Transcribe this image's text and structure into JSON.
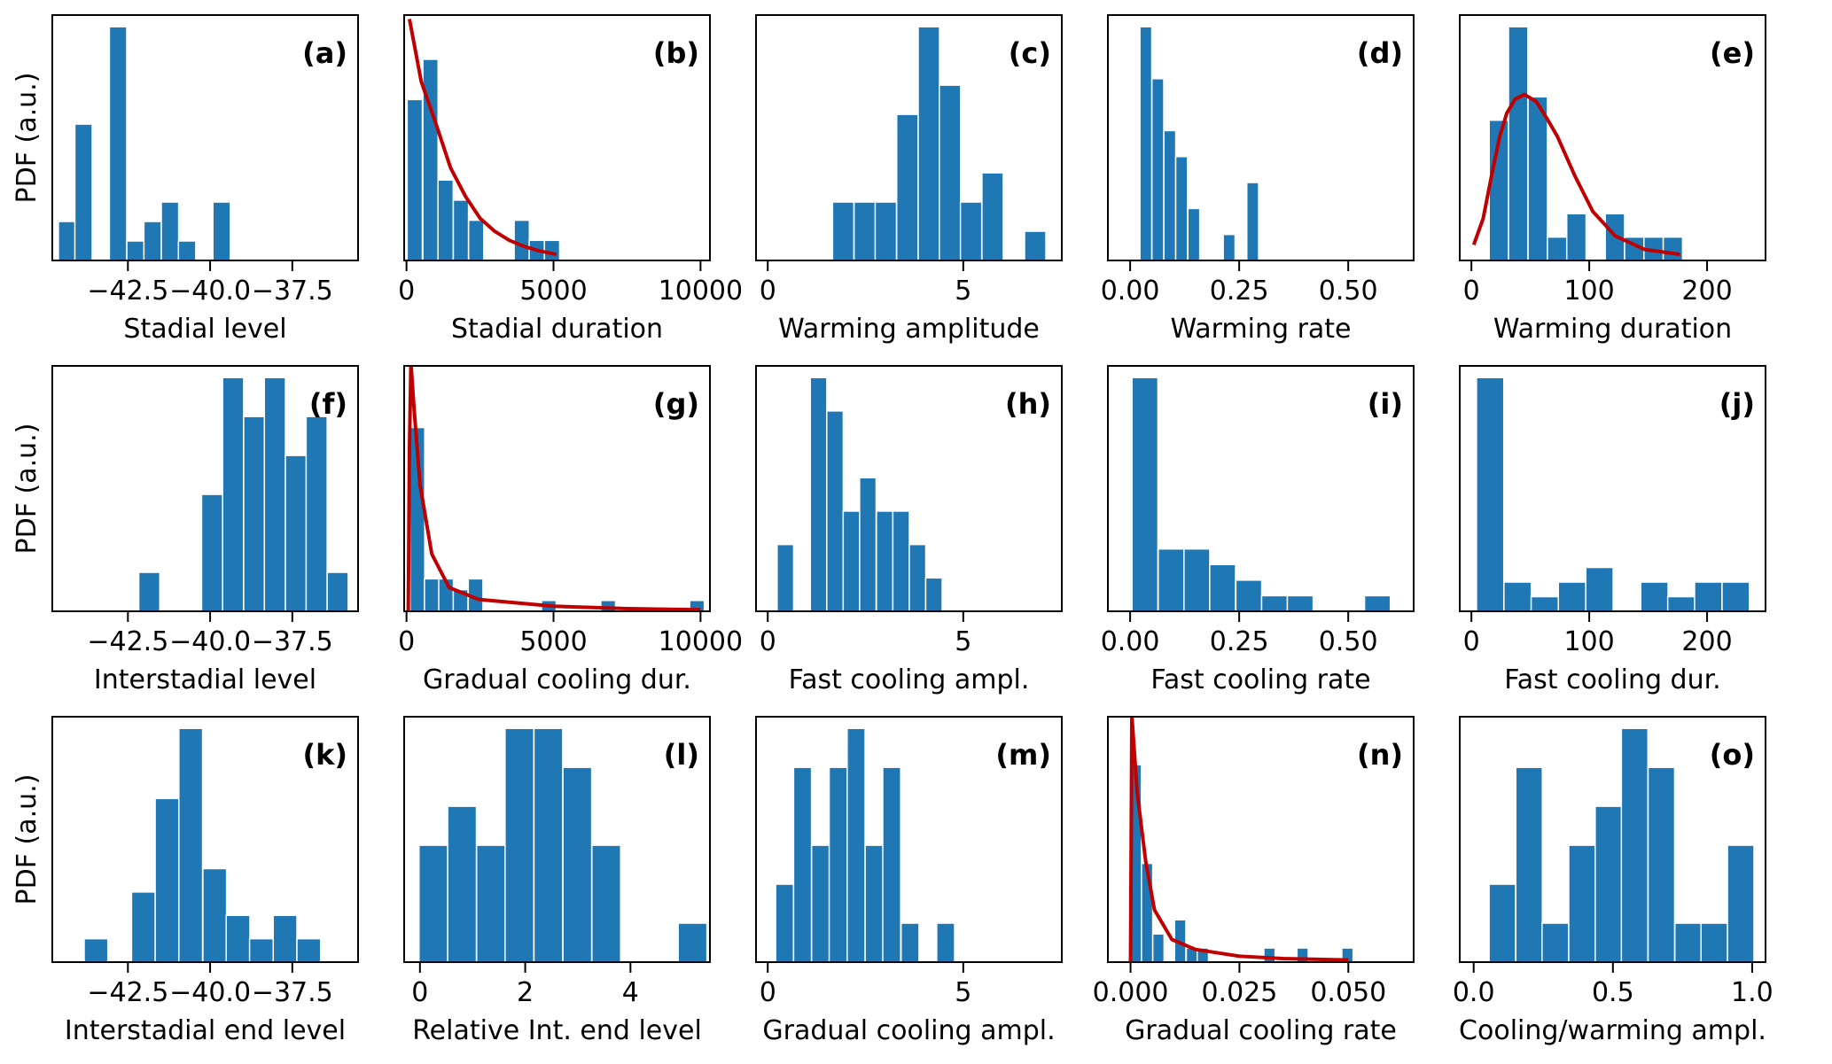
{
  "colors": {
    "bar": "#1f77b4",
    "fit_curve": "#c00000",
    "axes": "#000000"
  },
  "chart_data": [
    {
      "type": "bar",
      "panel_label": "(a)",
      "ylabel": "PDF (a.u.)",
      "xlabel": "Stadial level",
      "xlim": [
        -44.8,
        -35.5
      ],
      "ylim": [
        0,
        12.6
      ],
      "xticks": [
        -42.5,
        -40.0,
        -37.5
      ],
      "xtick_labels": [
        "−42.5",
        "−40.0",
        "−37.5"
      ],
      "bin_width": 0.527,
      "bins": [
        -44.35,
        -43.85,
        -42.8,
        -42.27,
        -41.75,
        -41.22,
        -40.7,
        -39.65
      ],
      "heights": [
        2,
        7,
        12,
        1,
        2,
        3,
        1,
        3
      ]
    },
    {
      "type": "bar",
      "panel_label": "(b)",
      "xlabel": "Stadial duration",
      "xlim": [
        -80,
        10320
      ],
      "ylim": [
        0,
        12.2
      ],
      "xticks": [
        0,
        5000,
        10000
      ],
      "xtick_labels": [
        "0",
        "5000",
        "10000"
      ],
      "bin_width": 517,
      "bins": [
        280,
        815,
        1330,
        1850,
        2370,
        3920,
        4430,
        4950
      ],
      "heights": [
        8,
        10,
        4,
        3,
        2,
        2,
        1,
        1
      ],
      "fit": {
        "x": [
          100,
          500,
          1000,
          1500,
          2000,
          2500,
          3000,
          3500,
          4000,
          4500,
          5100
        ],
        "y": [
          12,
          8.9,
          6.8,
          4.6,
          3.2,
          2.1,
          1.45,
          1.0,
          0.7,
          0.48,
          0.3
        ]
      }
    },
    {
      "type": "bar",
      "panel_label": "(c)",
      "xlabel": "Warming amplitude",
      "xlim": [
        -0.3,
        7.52
      ],
      "ylim": [
        0,
        8.4
      ],
      "xticks": [
        0,
        5
      ],
      "xtick_labels": [
        "0",
        "5"
      ],
      "bin_width": 0.545,
      "bins": [
        1.93,
        2.48,
        3.02,
        3.57,
        4.12,
        4.66,
        5.2,
        5.75,
        6.84
      ],
      "heights": [
        2,
        2,
        2,
        5,
        8,
        6,
        2,
        3,
        1
      ]
    },
    {
      "type": "bar",
      "panel_label": "(d)",
      "xlabel": "Warming rate",
      "xlim": [
        -0.051,
        0.65
      ],
      "ylim": [
        0,
        9.45
      ],
      "xticks": [
        0,
        0.25,
        0.5
      ],
      "xtick_labels": [
        "0.00",
        "0.25",
        "0.50"
      ],
      "bin_width": 0.0271,
      "bins": [
        0.036,
        0.0635,
        0.091,
        0.118,
        0.146,
        0.227,
        0.281
      ],
      "heights": [
        9,
        7,
        5,
        4,
        2,
        1,
        3
      ]
    },
    {
      "type": "bar",
      "panel_label": "(e)",
      "xlabel": "Warming duration",
      "xlim": [
        -9.9,
        249.6
      ],
      "ylim": [
        0,
        10.5
      ],
      "xticks": [
        0,
        100,
        200
      ],
      "xtick_labels": [
        "0",
        "100",
        "200"
      ],
      "bin_width": 16.4,
      "bins": [
        23.3,
        39.7,
        56.3,
        72.7,
        89.1,
        121.8,
        138.2,
        154.6,
        171
      ],
      "heights": [
        6,
        10,
        7,
        1,
        2,
        2,
        1,
        1,
        1
      ],
      "fit": {
        "x": [
          2,
          10,
          17,
          24,
          30,
          37,
          45,
          55,
          65,
          73,
          88,
          103,
          122,
          147,
          177
        ],
        "y": [
          0.67,
          1.8,
          3.6,
          5.3,
          6.3,
          6.9,
          7.1,
          6.8,
          6.0,
          5.3,
          3.6,
          2.1,
          1.05,
          0.47,
          0.26
        ]
      }
    },
    {
      "type": "bar",
      "panel_label": "(f)",
      "ylabel": "PDF (a.u.)",
      "xlabel": "Interstadial level",
      "xlim": [
        -44.8,
        -35.5
      ],
      "ylim": [
        0,
        12.6
      ],
      "xticks": [
        -42.5,
        -40.0,
        -37.5
      ],
      "xtick_labels": [
        "−42.5",
        "−40.0",
        "−37.5"
      ],
      "bin_width": 0.64,
      "bins": [
        -41.85,
        -39.94,
        -39.3,
        -38.66,
        -38.03,
        -37.39,
        -36.76,
        -36.12
      ],
      "heights": [
        2,
        6,
        12,
        10,
        12,
        8,
        10,
        2
      ]
    },
    {
      "type": "bar",
      "panel_label": "(g)",
      "xlabel": "Gradual cooling dur.",
      "xlim": [
        -80,
        10320
      ],
      "ylim": [
        0,
        22.7
      ],
      "xticks": [
        0,
        5000,
        10000
      ],
      "xtick_labels": [
        "0",
        "5000",
        "10000"
      ],
      "bin_width": 500,
      "bins": [
        370,
        860,
        1345,
        1840,
        2350,
        4840,
        6860,
        9880
      ],
      "heights": [
        17,
        3,
        3,
        2,
        3,
        1,
        1,
        1
      ],
      "fit": {
        "x": [
          60,
          100,
          150,
          250,
          460,
          860,
          1450,
          2450,
          5000,
          7500,
          10000
        ],
        "y": [
          0,
          15,
          23,
          19,
          11.7,
          5.3,
          2.2,
          1.1,
          0.47,
          0.25,
          0.14
        ]
      }
    },
    {
      "type": "bar",
      "panel_label": "(h)",
      "xlabel": "Fast cooling ampl.",
      "xlim": [
        -0.3,
        7.52
      ],
      "ylim": [
        0,
        7.35
      ],
      "xticks": [
        0,
        5
      ],
      "xtick_labels": [
        "0",
        "5"
      ],
      "bin_width": 0.422,
      "bins": [
        0.45,
        1.3,
        1.72,
        2.14,
        2.56,
        2.99,
        3.41,
        3.83,
        4.25
      ],
      "heights": [
        2,
        7,
        6,
        3,
        4,
        3,
        3,
        2,
        1
      ]
    },
    {
      "type": "bar",
      "panel_label": "(i)",
      "xlabel": "Fast cooling rate",
      "xlim": [
        -0.051,
        0.65
      ],
      "ylim": [
        0,
        15.75
      ],
      "xticks": [
        0,
        0.25,
        0.5
      ],
      "xtick_labels": [
        "0.00",
        "0.25",
        "0.50"
      ],
      "bin_width": 0.0592,
      "bins": [
        0.034,
        0.094,
        0.153,
        0.212,
        0.272,
        0.331,
        0.39,
        0.567
      ],
      "heights": [
        15,
        4,
        4,
        3,
        2,
        1,
        1,
        1
      ]
    },
    {
      "type": "bar",
      "panel_label": "(j)",
      "xlabel": "Fast cooling dur.",
      "xlim": [
        -9.9,
        249.6
      ],
      "ylim": [
        0,
        16.8
      ],
      "xticks": [
        0,
        100,
        200
      ],
      "xtick_labels": [
        "0",
        "100",
        "200"
      ],
      "bin_width": 23.2,
      "bins": [
        15.9,
        39.2,
        62.3,
        85.4,
        108.7,
        155.3,
        178.2,
        201,
        224.3
      ],
      "heights": [
        16,
        2,
        1,
        2,
        3,
        2,
        1,
        2,
        2
      ]
    },
    {
      "type": "bar",
      "panel_label": "(k)",
      "ylabel": "PDF (a.u.)",
      "xlabel": "Interstadial end level",
      "xlim": [
        -44.8,
        -35.5
      ],
      "ylim": [
        0,
        10.5
      ],
      "xticks": [
        -42.5,
        -40.0,
        -37.5
      ],
      "xtick_labels": [
        "−42.5",
        "−40.0",
        "−37.5"
      ],
      "bin_width": 0.72,
      "bins": [
        -43.47,
        -42.03,
        -41.31,
        -40.59,
        -39.86,
        -39.15,
        -38.44,
        -37.72,
        -37.0
      ],
      "heights": [
        1,
        3,
        7,
        10,
        4,
        2,
        1,
        2,
        1
      ]
    },
    {
      "type": "bar",
      "panel_label": "(l)",
      "xlabel": "Relative Int. end level",
      "xlim": [
        -0.3,
        5.51
      ],
      "ylim": [
        0,
        12.6
      ],
      "xticks": [
        0,
        2,
        4
      ],
      "xtick_labels": [
        "0",
        "2",
        "4"
      ],
      "bin_width": 0.546,
      "bins": [
        0.255,
        0.8,
        1.35,
        1.89,
        2.44,
        2.99,
        3.54,
        5.18
      ],
      "heights": [
        6,
        8,
        6,
        12,
        12,
        10,
        6,
        2
      ]
    },
    {
      "type": "bar",
      "panel_label": "(m)",
      "xlabel": "Gradual cooling ampl.",
      "xlim": [
        -0.3,
        7.52
      ],
      "ylim": [
        0,
        6.3
      ],
      "xticks": [
        0,
        5
      ],
      "xtick_labels": [
        "0",
        "5"
      ],
      "bin_width": 0.458,
      "bins": [
        0.43,
        0.89,
        1.35,
        1.8,
        2.26,
        2.72,
        3.17,
        3.64,
        4.55
      ],
      "heights": [
        2,
        5,
        3,
        5,
        6,
        3,
        5,
        1,
        1
      ]
    },
    {
      "type": "bar",
      "panel_label": "(n)",
      "xlabel": "Gradual cooling rate",
      "xlim": [
        -0.0052,
        0.065
      ],
      "ylim": [
        0,
        17.4
      ],
      "xticks": [
        0,
        0.025,
        0.05
      ],
      "xtick_labels": [
        "0.000",
        "0.025",
        "0.050"
      ],
      "bin_width": 0.00259,
      "bins": [
        0.0012,
        0.0038,
        0.0064,
        0.0114,
        0.0141,
        0.0166,
        0.0319,
        0.0395,
        0.0498
      ],
      "heights": [
        14,
        7,
        2,
        3,
        1,
        1,
        1,
        1,
        1
      ],
      "fit": {
        "x": [
          0,
          0.0003,
          0.0015,
          0.0035,
          0.0055,
          0.0095,
          0.0149,
          0.025,
          0.035,
          0.05
        ],
        "y": [
          0,
          17.5,
          12.1,
          7.1,
          3.7,
          1.6,
          0.9,
          0.42,
          0.25,
          0.15
        ]
      }
    },
    {
      "type": "bar",
      "panel_label": "(o)",
      "xlabel": "Cooling/warming ampl.",
      "xlim": [
        -0.05,
        1.048
      ],
      "ylim": [
        0,
        12.6
      ],
      "xticks": [
        0,
        0.5,
        1.0
      ],
      "xtick_labels": [
        "0.0",
        "0.5",
        "1.0"
      ],
      "bin_width": 0.0952,
      "bins": [
        0.103,
        0.199,
        0.293,
        0.389,
        0.484,
        0.578,
        0.674,
        0.77,
        0.864,
        0.959
      ],
      "heights": [
        4,
        10,
        2,
        6,
        8,
        12,
        10,
        2,
        2,
        6
      ]
    }
  ]
}
